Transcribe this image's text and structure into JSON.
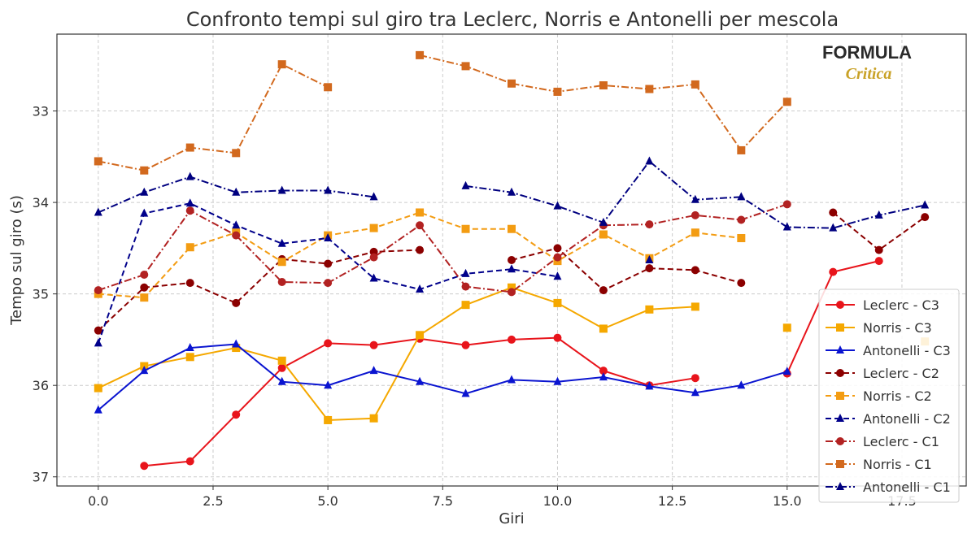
{
  "chart_data": {
    "type": "line",
    "title": "Confronto tempi sul giro tra Leclerc, Norris e Antonelli per mescola",
    "xlabel": "Giri",
    "ylabel": "Tempo sul giro (s)",
    "xlim": [
      -0.9,
      18.9
    ],
    "ylim": [
      37.1,
      32.16
    ],
    "y_inverted": true,
    "grid": true,
    "legend_position": "bottom-right",
    "xticks": [
      0.0,
      2.5,
      5.0,
      7.5,
      10.0,
      12.5,
      15.0,
      17.5
    ],
    "xtick_labels": [
      "0.0",
      "2.5",
      "5.0",
      "7.5",
      "10.0",
      "12.5",
      "15.0",
      "17.5"
    ],
    "yticks": [
      33,
      34,
      35,
      36,
      37
    ],
    "ytick_labels": [
      "33",
      "34",
      "35",
      "36",
      "37"
    ],
    "x": [
      0,
      1,
      2,
      3,
      4,
      5,
      6,
      7,
      8,
      9,
      10,
      11,
      12,
      13,
      14,
      15,
      16,
      17,
      18
    ],
    "series": [
      {
        "name": "Leclerc - C3",
        "color": "#e8141b",
        "style": "solid",
        "marker": "circle",
        "values": [
          null,
          36.88,
          36.83,
          36.32,
          35.81,
          35.54,
          35.56,
          35.49,
          35.56,
          35.5,
          35.48,
          35.84,
          36.0,
          35.92,
          null,
          35.87,
          34.76,
          34.64,
          null
        ]
      },
      {
        "name": "Norris - C3",
        "color": "#f5a800",
        "style": "solid",
        "marker": "square",
        "values": [
          36.03,
          35.79,
          35.69,
          35.59,
          35.73,
          36.38,
          36.36,
          35.45,
          35.12,
          34.93,
          35.1,
          35.38,
          35.17,
          35.14,
          null,
          35.37,
          null,
          null,
          35.52
        ]
      },
      {
        "name": "Antonelli - C3",
        "color": "#0a14d0",
        "style": "solid",
        "marker": "triangle",
        "values": [
          36.27,
          35.84,
          35.59,
          35.55,
          35.96,
          36.0,
          35.84,
          35.96,
          36.09,
          35.94,
          35.96,
          35.91,
          36.01,
          36.08,
          36.0,
          35.85,
          null,
          null,
          null
        ]
      },
      {
        "name": "Leclerc - C2",
        "color": "#8b0000",
        "style": "dashed",
        "marker": "circle",
        "values": [
          35.4,
          34.93,
          34.88,
          35.1,
          34.62,
          34.67,
          34.54,
          34.52,
          null,
          34.63,
          34.5,
          34.96,
          34.72,
          34.74,
          34.88,
          null,
          34.11,
          34.52,
          34.16
        ]
      },
      {
        "name": "Norris - C2",
        "color": "#f39c12",
        "style": "dashed",
        "marker": "square",
        "values": [
          35.0,
          35.04,
          34.49,
          34.33,
          34.65,
          34.36,
          34.28,
          34.11,
          34.29,
          34.29,
          34.64,
          34.35,
          34.61,
          34.33,
          34.39,
          null,
          null,
          null,
          null
        ]
      },
      {
        "name": "Antonelli - C2",
        "color": "#00008b",
        "style": "dashed",
        "marker": "triangle",
        "values": [
          35.54,
          34.12,
          34.01,
          34.25,
          34.45,
          34.39,
          34.83,
          34.95,
          34.78,
          34.73,
          34.81,
          null,
          34.63,
          null,
          null,
          null,
          null,
          null,
          null
        ]
      },
      {
        "name": "Leclerc - C1",
        "color": "#b22222",
        "style": "dashdot",
        "marker": "circle",
        "values": [
          34.96,
          34.79,
          34.09,
          34.36,
          34.87,
          34.88,
          34.6,
          34.25,
          34.92,
          34.98,
          34.6,
          34.25,
          34.24,
          34.14,
          34.19,
          34.02,
          null,
          null,
          null
        ]
      },
      {
        "name": "Norris - C1",
        "color": "#d2691e",
        "style": "dashdot",
        "marker": "square",
        "values": [
          33.55,
          33.65,
          33.4,
          33.46,
          32.49,
          32.74,
          null,
          32.39,
          32.51,
          32.7,
          32.79,
          32.72,
          32.76,
          32.71,
          33.43,
          32.9,
          null,
          null,
          null
        ]
      },
      {
        "name": "Antonelli - C1",
        "color": "#000080",
        "style": "dashdot",
        "marker": "triangle",
        "values": [
          34.11,
          33.89,
          33.72,
          33.89,
          33.87,
          33.87,
          33.94,
          null,
          33.82,
          33.89,
          34.04,
          34.22,
          33.55,
          33.97,
          33.94,
          34.27,
          34.28,
          34.14,
          34.03
        ]
      }
    ]
  },
  "watermark": {
    "line1": "FORMULA",
    "line2": "Critica"
  }
}
